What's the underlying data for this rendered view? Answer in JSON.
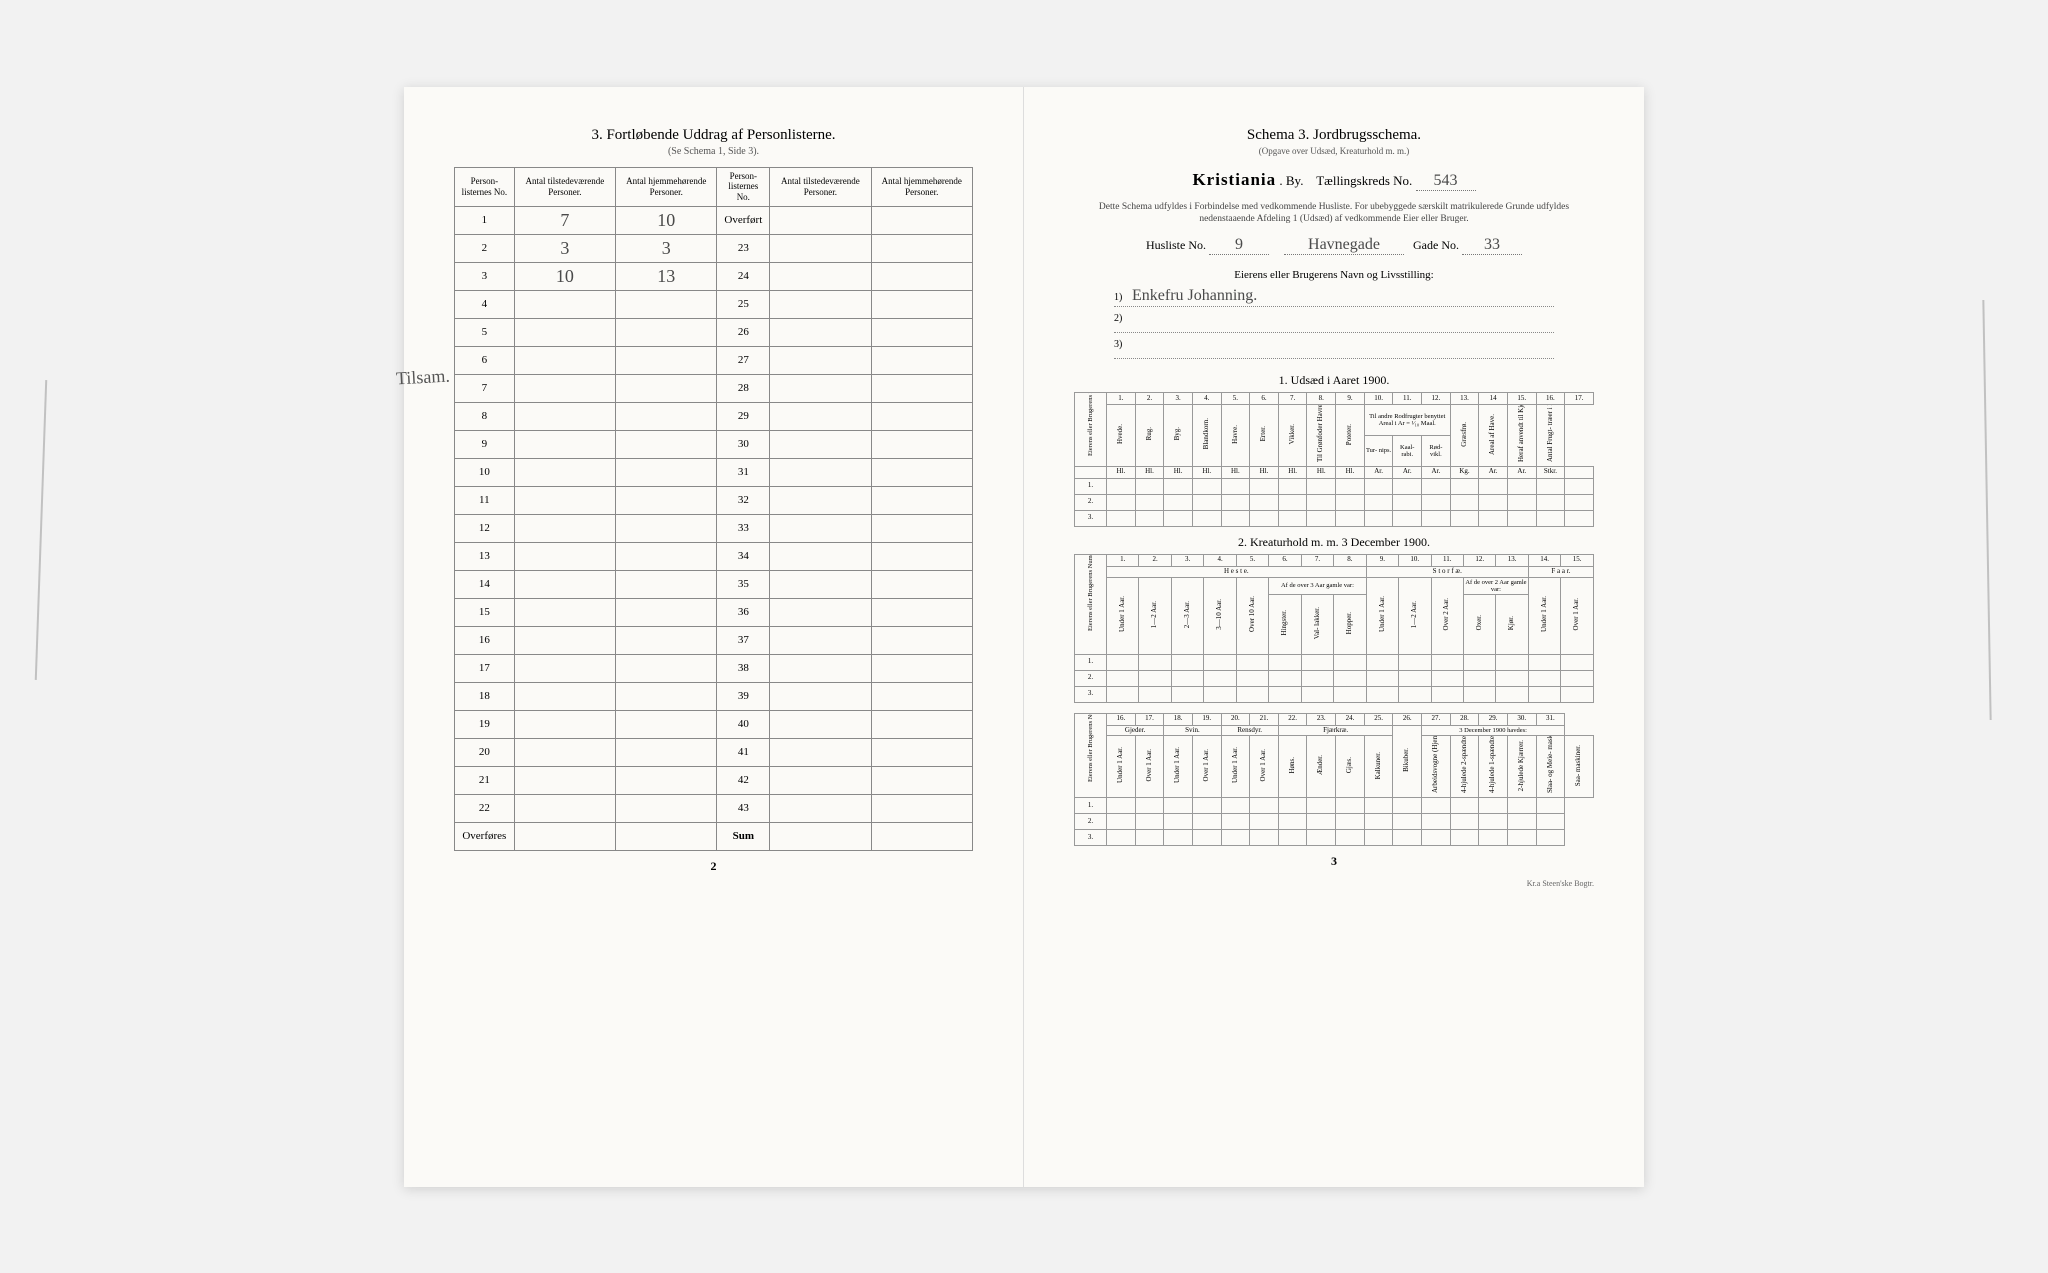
{
  "left": {
    "title": "3.   Fortløbende Uddrag af Personlisterne.",
    "subtitle": "(Se Schema 1, Side 3).",
    "headers": {
      "c1": "Person-\nlisternes\nNo.",
      "c2": "Antal\ntilstedeværende\nPersoner.",
      "c3": "Antal\nhjemmehørende\nPersoner.",
      "c4": "Person-\nlisternes\nNo.",
      "c5": "Antal\ntilstedeværende\nPersoner.",
      "c6": "Antal\nhjemmehørende\nPersoner."
    },
    "overfort": "Overført",
    "rows_left": [
      {
        "n": "1",
        "a": "7",
        "b": "10"
      },
      {
        "n": "2",
        "a": "3",
        "b": "3"
      },
      {
        "n": "3",
        "a": "10",
        "b": "13"
      },
      {
        "n": "4",
        "a": "",
        "b": ""
      },
      {
        "n": "5",
        "a": "",
        "b": ""
      },
      {
        "n": "6",
        "a": "",
        "b": ""
      },
      {
        "n": "7",
        "a": "",
        "b": ""
      },
      {
        "n": "8",
        "a": "",
        "b": ""
      },
      {
        "n": "9",
        "a": "",
        "b": ""
      },
      {
        "n": "10",
        "a": "",
        "b": ""
      },
      {
        "n": "11",
        "a": "",
        "b": ""
      },
      {
        "n": "12",
        "a": "",
        "b": ""
      },
      {
        "n": "13",
        "a": "",
        "b": ""
      },
      {
        "n": "14",
        "a": "",
        "b": ""
      },
      {
        "n": "15",
        "a": "",
        "b": ""
      },
      {
        "n": "16",
        "a": "",
        "b": ""
      },
      {
        "n": "17",
        "a": "",
        "b": ""
      },
      {
        "n": "18",
        "a": "",
        "b": ""
      },
      {
        "n": "19",
        "a": "",
        "b": ""
      },
      {
        "n": "20",
        "a": "",
        "b": ""
      },
      {
        "n": "21",
        "a": "",
        "b": ""
      },
      {
        "n": "22",
        "a": "",
        "b": ""
      }
    ],
    "rows_right_nums": [
      "23",
      "24",
      "25",
      "26",
      "27",
      "28",
      "29",
      "30",
      "31",
      "32",
      "33",
      "34",
      "35",
      "36",
      "37",
      "38",
      "39",
      "40",
      "41",
      "42",
      "43"
    ],
    "overfores": "Overføres",
    "sum": "Sum",
    "margin_note": "Tilsam.",
    "page_num": "2"
  },
  "right": {
    "title": "Schema 3.   Jordbrugsschema.",
    "subtitle": "(Opgave over Udsæd, Kreaturhold m. m.)",
    "city": "Kristiania",
    "by_label": "By.",
    "kreds_label": "Tællingskreds No.",
    "kreds_val": "543",
    "instruction": "Dette Schema udfyldes i Forbindelse med vedkommende Husliste.  For ubebyggede særskilt\nmatrikulerede Grunde udfyldes nedenstaaende Afdeling 1 (Udsæd) af vedkommende Eier eller Bruger.",
    "husliste_label": "Husliste No.",
    "husliste_val": "9",
    "gade_name": "Havnegade",
    "gade_label": "Gade No.",
    "gade_val": "33",
    "owner_title": "Eierens eller Brugerens Navn og Livsstilling:",
    "owner_lines": [
      "Enkefru Johanning.",
      "",
      ""
    ],
    "sec1_title": "1.  Udsæd i Aaret 1900.",
    "sec1_nums": [
      "1.",
      "2.",
      "3.",
      "4.",
      "5.",
      "6.",
      "7.",
      "8.",
      "9.",
      "10.",
      "11.",
      "12.",
      "13.",
      "14",
      "15.",
      "16.",
      "17."
    ],
    "sec1_cols": [
      "Hvede.",
      "Rug.",
      "Byg.",
      "Blandkorn.",
      "Havre.",
      "Erter.",
      "Vikker.",
      "Til Grønfoder\nHavre, Vikker,\nErter m. m.",
      "Poteter.",
      "Til andre Rodfrugter\nbenyttet Areal\ni Ar = ¹⁄₁₀ Maal.",
      "Græsfrø.",
      "Areal af\nHave.",
      "Heraf anvendt\ntil Kjøkken-\nhavevækster.",
      "Antal Frugt-\ntræer i Haven."
    ],
    "sec1_sub": [
      "Tur-\nnips.",
      "Kaal-\nrabi.",
      "Rød-\nvikl."
    ],
    "sec1_units": [
      "Hl.",
      "Hl.",
      "Hl.",
      "Hl.",
      "Hl.",
      "Hl.",
      "Hl.",
      "Hl.",
      "Hl.",
      "Ar.",
      "Ar.",
      "Ar.",
      "Kg.",
      "Ar.",
      "Ar.",
      "Stkr."
    ],
    "sidehead": "Eierens eller\nBrugerens Numer\n(se ovenfor).",
    "sec2_title": "2.  Kreaturhold m. m. 3 December 1900.",
    "sec2_nums": [
      "1.",
      "2.",
      "3.",
      "4.",
      "5.",
      "6.",
      "7.",
      "8.",
      "9.",
      "10.",
      "11.",
      "12.",
      "13.",
      "14.",
      "15."
    ],
    "sec2_group1": "H e s t e.",
    "sec2_group2": "S t o r f æ.",
    "sec2_group3": "F a a r.",
    "sec2_cols": [
      "Under 1 Aar.",
      "1—2 Aar.",
      "2—3 Aar.",
      "3—10 Aar.",
      "Over 10 Aar.",
      "Hingster.",
      "Val-\nlakker.",
      "Hopper.",
      "Under 1 Aar.",
      "1—2 Aar.",
      "Over 2 Aar.",
      "Oxer.",
      "Kjør.",
      "Under 1 Aar.",
      "Over 1 Aar."
    ],
    "sec2_span1": "Af de over 3 Aar\ngamle var:",
    "sec2_span2": "Af de over 2 Aar\ngamle var:",
    "sec3_nums": [
      "16.",
      "17.",
      "18.",
      "19.",
      "20.",
      "21.",
      "22.",
      "23.",
      "24.",
      "25.",
      "26.",
      "27.",
      "28.",
      "29.",
      "30.",
      "31."
    ],
    "sec3_groups": [
      "Gjeder.",
      "Svin.",
      "Rensdyr.",
      "Fjærkræ.",
      "3 December 1900 havdes:"
    ],
    "sec3_cols": [
      "Under 1 Aar.",
      "Over 1 Aar.",
      "Under 1 Aar.",
      "Over 1 Aar.",
      "Under 1 Aar.",
      "Over 1 Aar.",
      "Høns.",
      "Ænder.",
      "Gjæs.",
      "Kalkuner.",
      "Bikuber.",
      "Arbeidsvogne\n(Hjemme også\nundtaget)",
      "4-hjulede\n2-spændte.",
      "4-hjulede\n1-spændte.",
      "2-hjulede\nKjærrer.",
      "Slaa- og Meie-\nmaskiner.",
      "Saa-\nmaskiner."
    ],
    "page_num": "3",
    "printer": "Kr.a   Steen'ske Bogtr."
  },
  "colors": {
    "paper": "#fbfaf7",
    "ink": "#333333",
    "rule": "#888888",
    "hand": "#4a4a4a"
  }
}
